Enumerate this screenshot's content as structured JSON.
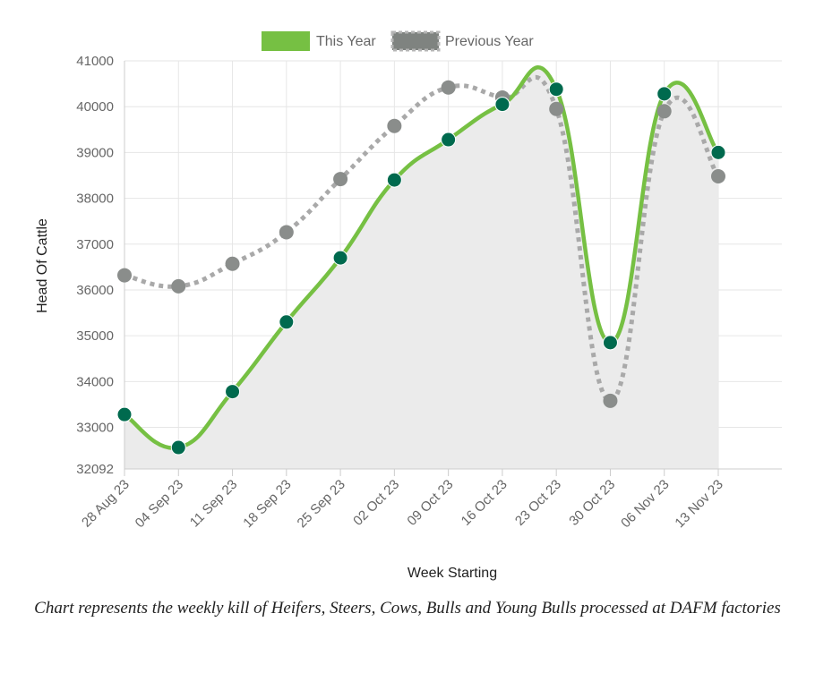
{
  "chart_data": {
    "type": "line",
    "categories": [
      "28 Aug 23",
      "04 Sep 23",
      "11 Sep 23",
      "18 Sep 23",
      "25 Sep 23",
      "02 Oct 23",
      "09 Oct 23",
      "16 Oct 23",
      "23 Oct 23",
      "30 Oct 23",
      "06 Nov 23",
      "13 Nov 23"
    ],
    "series": [
      {
        "name": "This Year",
        "values": [
          33280,
          32560,
          33780,
          35300,
          36700,
          38400,
          39280,
          40050,
          40380,
          34850,
          40280,
          39000
        ],
        "color": "#76c043",
        "point_color": "#006a4e",
        "style": "solid",
        "fill": "#ebebeb"
      },
      {
        "name": "Previous Year",
        "values": [
          36320,
          36080,
          36570,
          37260,
          38420,
          39580,
          40420,
          40200,
          39950,
          33580,
          39900,
          38480
        ],
        "color": "#a9a9a9",
        "point_color": "#8a8d8b",
        "style": "dotted"
      }
    ],
    "xlabel": "Week Starting",
    "ylabel": "Head Of Cattle",
    "ylim": [
      32092,
      41000
    ],
    "yticks": [
      32092,
      33000,
      34000,
      35000,
      36000,
      37000,
      38000,
      39000,
      40000,
      41000
    ],
    "grid": true,
    "legend_position": "top-center"
  },
  "caption": "Chart represents the weekly kill of Heifers, Steers, Cows, Bulls and Young Bulls processed at DAFM factories"
}
